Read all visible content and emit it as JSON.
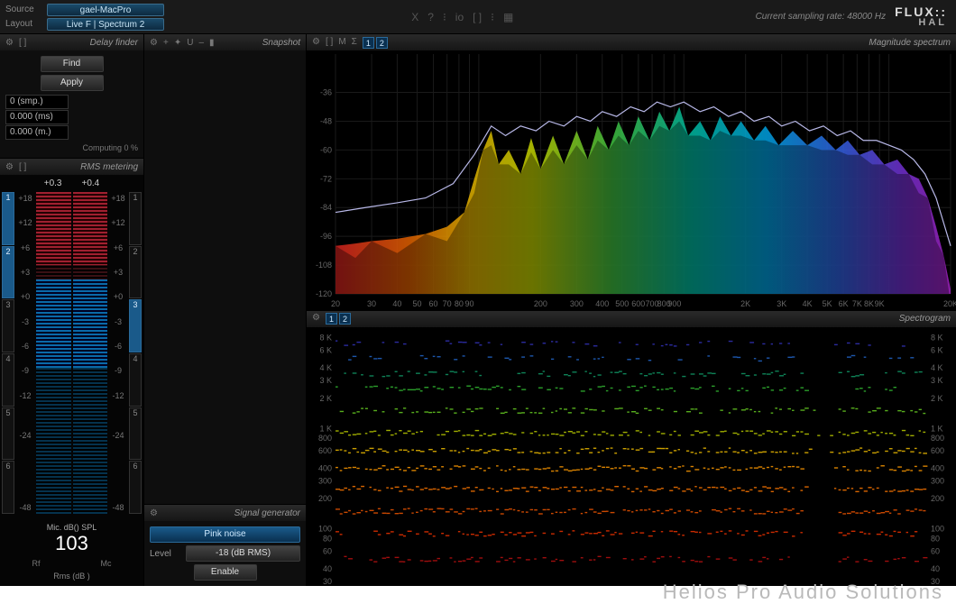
{
  "topbar": {
    "source_label": "Source",
    "layout_label": "Layout",
    "source_value": "gael-MacPro",
    "layout_value": "Live F | Spectrum 2",
    "center_icons": [
      "X",
      "?",
      "⁝",
      "io",
      "[ ]",
      "⁝",
      "▦"
    ],
    "sampling_rate_label": "Current sampling rate:",
    "sampling_rate_value": "48000 Hz",
    "brand_top": "FLUX::",
    "brand_bottom": "HAL"
  },
  "delay_finder": {
    "title": "Delay finder",
    "icons": [
      "⚙",
      "[ ]"
    ],
    "find_btn": "Find",
    "apply_btn": "Apply",
    "fields": [
      "0 (smp.)",
      "0.000 (ms)",
      "0.000 (m.)"
    ],
    "computing": "Computing 0 %"
  },
  "rms": {
    "title": "RMS metering",
    "icons": [
      "⚙",
      "[ ]"
    ],
    "top_values": [
      "+0.3",
      "+0.4"
    ],
    "channels_left": [
      true,
      true,
      false,
      false,
      false,
      false
    ],
    "channels_right": [
      false,
      false,
      true,
      false,
      false,
      false
    ],
    "scale_ticks": [
      "+18",
      "+12",
      "+6",
      "+3",
      "+0",
      "-3",
      "-6",
      "-9",
      "-12",
      "",
      "-24",
      "",
      "",
      "",
      "-48"
    ],
    "bar_top_db": 18,
    "bar_bottom_db": -48,
    "red_from_db": 18,
    "red_to_db": 3,
    "blue_from_db": 0,
    "blue_to_db": -18,
    "red_color": "#a02030",
    "dark_red": "#3a1014",
    "blue_color": "#0a6aa8",
    "dark_blue": "#05324d",
    "spl_label": "Mic. dB() SPL",
    "spl_value": "103",
    "bottom_labels": [
      "Rf",
      "Mc"
    ],
    "caption": "Rms (dB )"
  },
  "snapshot": {
    "title": "Snapshot",
    "icons": [
      "⚙",
      "+",
      "✦",
      "U",
      "–",
      "▮"
    ]
  },
  "signal_gen": {
    "title": "Signal generator",
    "icons": [
      "⚙"
    ],
    "type_btn": "Pink noise",
    "level_label": "Level",
    "level_value": "-18 (dB RMS)",
    "enable_btn": "Enable"
  },
  "spectrum": {
    "title": "Magnitude spectrum",
    "icons": [
      "⚙",
      "[ ]",
      "M",
      "Σ"
    ],
    "badges": [
      "1",
      "2"
    ],
    "y_min": -120,
    "y_max": -20,
    "y_ticks": [
      -36,
      -48,
      -60,
      -72,
      -84,
      -96,
      -108,
      -120
    ],
    "x_min_hz": 20,
    "x_max_hz": 20000,
    "x_ticks_hz": [
      20,
      30,
      40,
      50,
      60,
      70,
      80,
      90,
      100,
      200,
      300,
      400,
      500,
      600,
      700,
      800,
      900,
      1000,
      2000,
      3000,
      4000,
      5000,
      6000,
      7000,
      8000,
      9000,
      10000,
      20000
    ],
    "x_tick_labels": [
      "20",
      "30",
      "40",
      "50",
      "60",
      "70",
      "80",
      "90",
      "",
      "200",
      "300",
      "400",
      "500",
      "600",
      "700",
      "800",
      "900",
      "",
      "2K",
      "3K",
      "4K",
      "5K",
      "6K",
      "7K",
      "8K",
      "9K",
      "",
      "20K"
    ],
    "grid_color": "#1a1a1a",
    "tick_color": "#666",
    "line_color": "#b8b8e8",
    "rainbow_series_hz_db": [
      [
        20,
        -100
      ],
      [
        25,
        -99
      ],
      [
        30,
        -98
      ],
      [
        40,
        -97
      ],
      [
        55,
        -95
      ],
      [
        70,
        -92
      ],
      [
        85,
        -86
      ],
      [
        95,
        -72
      ],
      [
        105,
        -60
      ],
      [
        115,
        -52
      ],
      [
        125,
        -66
      ],
      [
        140,
        -60
      ],
      [
        160,
        -70
      ],
      [
        180,
        -55
      ],
      [
        200,
        -68
      ],
      [
        230,
        -54
      ],
      [
        260,
        -66
      ],
      [
        300,
        -52
      ],
      [
        340,
        -64
      ],
      [
        380,
        -50
      ],
      [
        430,
        -60
      ],
      [
        480,
        -48
      ],
      [
        540,
        -58
      ],
      [
        600,
        -46
      ],
      [
        680,
        -56
      ],
      [
        760,
        -44
      ],
      [
        850,
        -52
      ],
      [
        950,
        -42
      ],
      [
        1050,
        -54
      ],
      [
        1200,
        -48
      ],
      [
        1350,
        -56
      ],
      [
        1500,
        -46
      ],
      [
        1700,
        -54
      ],
      [
        1900,
        -48
      ],
      [
        2200,
        -56
      ],
      [
        2500,
        -50
      ],
      [
        2900,
        -58
      ],
      [
        3400,
        -52
      ],
      [
        4000,
        -58
      ],
      [
        4700,
        -54
      ],
      [
        5500,
        -60
      ],
      [
        6300,
        -56
      ],
      [
        7200,
        -62
      ],
      [
        8300,
        -60
      ],
      [
        9500,
        -66
      ],
      [
        11000,
        -64
      ],
      [
        12500,
        -70
      ],
      [
        14000,
        -72
      ],
      [
        15500,
        -80
      ],
      [
        17000,
        -92
      ],
      [
        18500,
        -104
      ],
      [
        20000,
        -118
      ]
    ],
    "white_line_hz_db": [
      [
        20,
        -86
      ],
      [
        28,
        -84
      ],
      [
        40,
        -82
      ],
      [
        55,
        -80
      ],
      [
        75,
        -74
      ],
      [
        95,
        -62
      ],
      [
        115,
        -50
      ],
      [
        135,
        -54
      ],
      [
        160,
        -50
      ],
      [
        190,
        -52
      ],
      [
        220,
        -48
      ],
      [
        260,
        -50
      ],
      [
        300,
        -46
      ],
      [
        350,
        -48
      ],
      [
        400,
        -44
      ],
      [
        470,
        -46
      ],
      [
        550,
        -42
      ],
      [
        640,
        -44
      ],
      [
        740,
        -40
      ],
      [
        860,
        -42
      ],
      [
        1000,
        -40
      ],
      [
        1200,
        -44
      ],
      [
        1400,
        -42
      ],
      [
        1650,
        -46
      ],
      [
        1900,
        -44
      ],
      [
        2200,
        -48
      ],
      [
        2600,
        -46
      ],
      [
        3000,
        -50
      ],
      [
        3500,
        -48
      ],
      [
        4100,
        -52
      ],
      [
        4800,
        -50
      ],
      [
        5600,
        -54
      ],
      [
        6500,
        -52
      ],
      [
        7500,
        -56
      ],
      [
        8700,
        -56
      ],
      [
        10000,
        -58
      ],
      [
        11500,
        -60
      ],
      [
        13200,
        -64
      ],
      [
        15000,
        -70
      ],
      [
        17000,
        -80
      ],
      [
        20000,
        -100
      ]
    ],
    "rainbow_stops": [
      [
        0,
        "#d02020"
      ],
      [
        0.12,
        "#e06000"
      ],
      [
        0.22,
        "#e0b000"
      ],
      [
        0.32,
        "#c0d000"
      ],
      [
        0.45,
        "#40c040"
      ],
      [
        0.58,
        "#00b8a0"
      ],
      [
        0.7,
        "#00a0e0"
      ],
      [
        0.82,
        "#3060e0"
      ],
      [
        0.92,
        "#7030d0"
      ],
      [
        1,
        "#a020c0"
      ]
    ]
  },
  "spectrogram": {
    "title": "Spectrogram",
    "icons": [
      "⚙"
    ],
    "badges": [
      "1",
      "2"
    ],
    "y_ticks_hz": [
      8000,
      6000,
      4000,
      3000,
      2000,
      1000,
      800,
      600,
      400,
      300,
      200,
      100,
      80,
      60,
      40,
      30
    ],
    "y_tick_labels": [
      "8 K",
      "6 K",
      "4 K",
      "3 K",
      "2 K",
      "1 K",
      "800",
      "600",
      "400",
      "300",
      "200",
      "100",
      "80",
      "60",
      "40",
      "30"
    ],
    "y_min_hz": 30,
    "y_max_hz": 9000,
    "freq_bands": [
      {
        "hz": 7000,
        "color": "#3030b0",
        "density": 0.25
      },
      {
        "hz": 5000,
        "color": "#2060c0",
        "density": 0.35
      },
      {
        "hz": 3500,
        "color": "#109060",
        "density": 0.5
      },
      {
        "hz": 2500,
        "color": "#30b030",
        "density": 0.65
      },
      {
        "hz": 1500,
        "color": "#60c020",
        "density": 0.75
      },
      {
        "hz": 900,
        "color": "#b0c000",
        "density": 0.85
      },
      {
        "hz": 600,
        "color": "#e0b000",
        "density": 0.9
      },
      {
        "hz": 400,
        "color": "#f09000",
        "density": 0.92
      },
      {
        "hz": 250,
        "color": "#f07000",
        "density": 0.95
      },
      {
        "hz": 150,
        "color": "#e05000",
        "density": 0.9
      },
      {
        "hz": 90,
        "color": "#e03000",
        "density": 0.7
      },
      {
        "hz": 50,
        "color": "#b01010",
        "density": 0.4
      }
    ],
    "time_cols": 140,
    "gap_col_start": 112,
    "gap_col_end": 118,
    "burst_cols": [
      4,
      10,
      16,
      22,
      28,
      34
    ]
  },
  "watermark": "Helios Pro Audio Solutions"
}
